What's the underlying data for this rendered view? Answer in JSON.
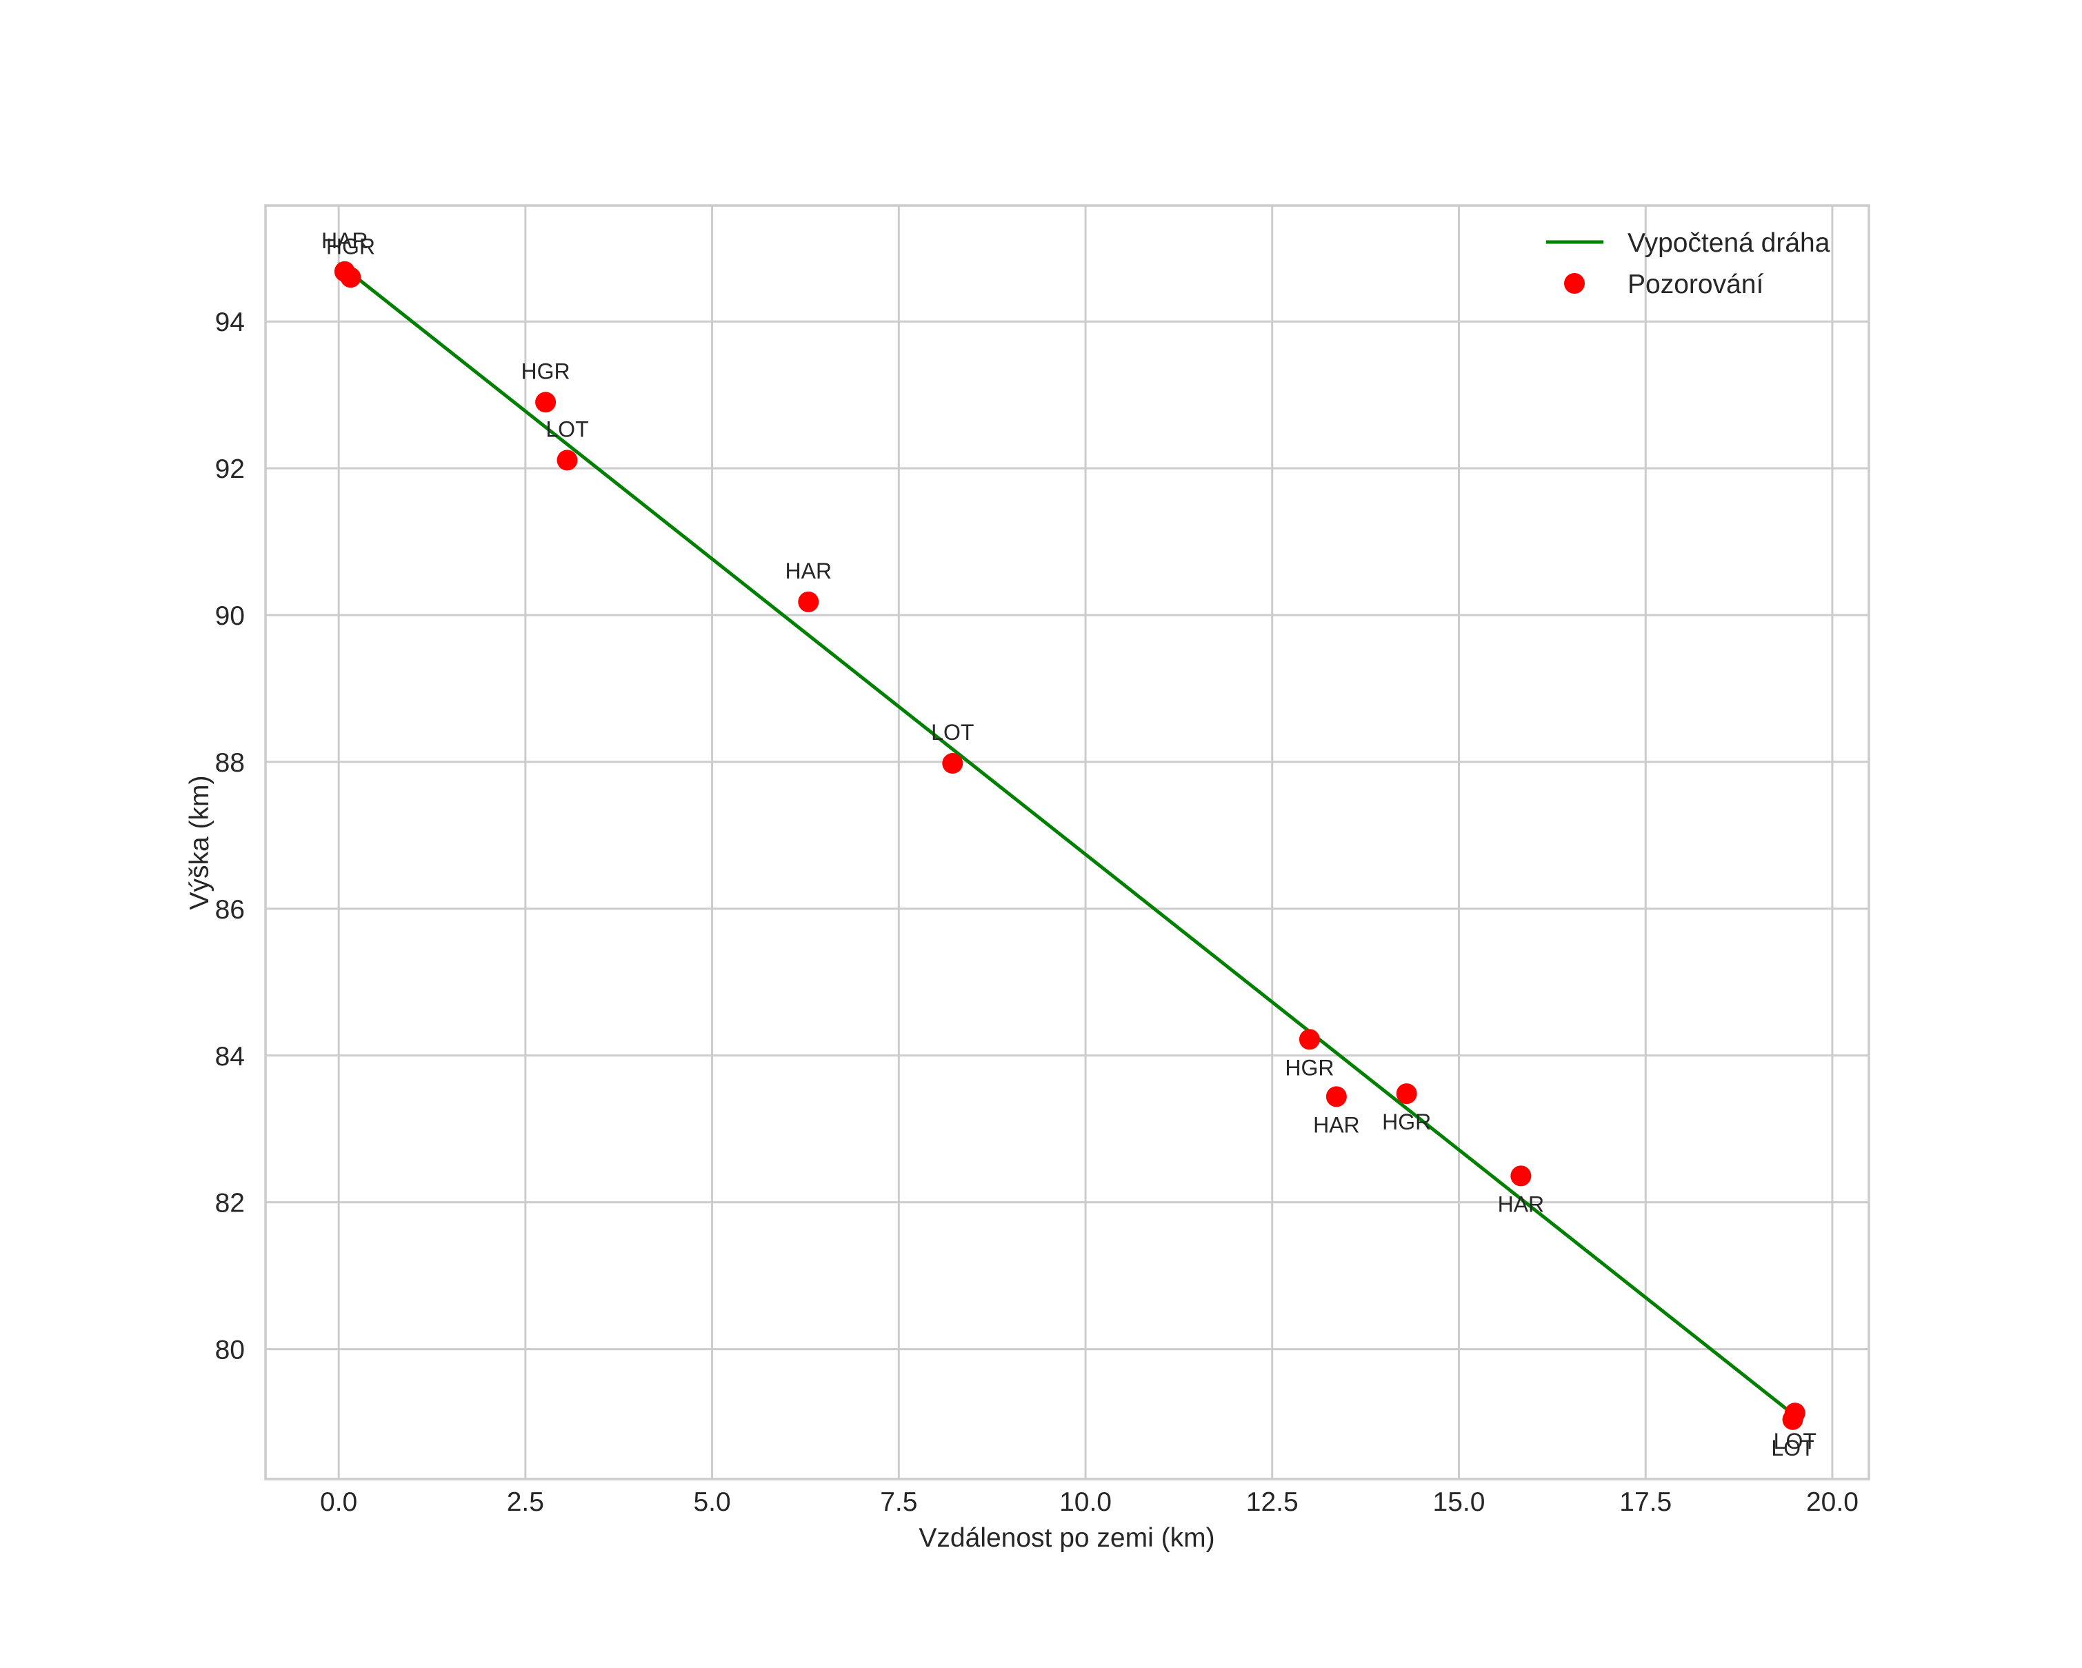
{
  "chart_data": {
    "type": "line+scatter",
    "title": "",
    "xlabel": "Vzdálenost po zemi (km)",
    "ylabel": "Výška (km)",
    "xlim": [
      -0.98,
      20.49
    ],
    "ylim": [
      78.23,
      95.58
    ],
    "xticks": [
      0.0,
      2.5,
      5.0,
      7.5,
      10.0,
      12.5,
      15.0,
      17.5,
      20.0
    ],
    "xtick_labels": [
      "0.0",
      "2.5",
      "5.0",
      "7.5",
      "10.0",
      "12.5",
      "15.0",
      "17.5",
      "20.0"
    ],
    "yticks": [
      80,
      82,
      84,
      86,
      88,
      90,
      92,
      94
    ],
    "ytick_labels": [
      "80",
      "82",
      "84",
      "86",
      "88",
      "90",
      "92",
      "94"
    ],
    "grid": true,
    "legend_position": "upper right",
    "series": [
      {
        "name": "Vypočtená dráha",
        "type": "line",
        "color": "#008000",
        "x": [
          0.0,
          19.38
        ],
        "y": [
          94.79,
          79.19
        ]
      },
      {
        "name": "Pozorování",
        "type": "scatter",
        "color": "#ff0000",
        "points": [
          {
            "x": 0.08,
            "y": 94.68,
            "label": "HAR",
            "label_pos": "above"
          },
          {
            "x": 0.16,
            "y": 94.6,
            "label": "HGR",
            "label_pos": "above"
          },
          {
            "x": 2.77,
            "y": 92.9,
            "label": "HGR",
            "label_pos": "above"
          },
          {
            "x": 3.06,
            "y": 92.11,
            "label": "LOT",
            "label_pos": "above"
          },
          {
            "x": 6.29,
            "y": 90.18,
            "label": "HAR",
            "label_pos": "above"
          },
          {
            "x": 8.22,
            "y": 87.98,
            "label": "LOT",
            "label_pos": "above"
          },
          {
            "x": 13.0,
            "y": 84.22,
            "label": "HGR",
            "label_pos": "below"
          },
          {
            "x": 13.36,
            "y": 83.44,
            "label": "HAR",
            "label_pos": "below"
          },
          {
            "x": 14.3,
            "y": 83.48,
            "label": "HGR",
            "label_pos": "below"
          },
          {
            "x": 15.83,
            "y": 82.36,
            "label": "HAR",
            "label_pos": "below"
          },
          {
            "x": 19.5,
            "y": 79.13,
            "label": "LOT",
            "label_pos": "below"
          },
          {
            "x": 19.47,
            "y": 79.04,
            "label": "LOT",
            "label_pos": "below"
          }
        ]
      }
    ]
  },
  "legend": {
    "items": [
      {
        "label": "Vypočtená dráha",
        "marker": "line",
        "color": "#008000"
      },
      {
        "label": "Pozorování",
        "marker": "circle",
        "color": "#ff0000"
      }
    ]
  },
  "colors": {
    "line": "#008000",
    "points": "#ff0000",
    "grid": "#cccccc",
    "text": "#262626"
  }
}
